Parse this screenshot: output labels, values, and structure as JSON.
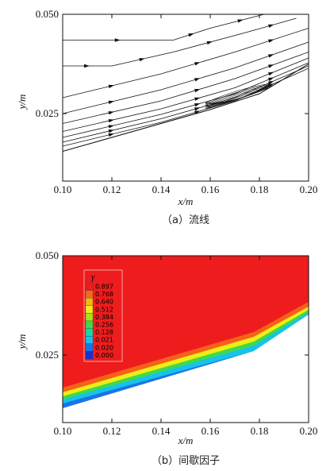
{
  "figure_a": {
    "caption": "（a）流线",
    "xlabel": "x/m",
    "ylabel": "y/m",
    "xticks": [
      "0.10",
      "0.12",
      "0.14",
      "0.16",
      "0.18",
      "0.20"
    ],
    "yticks": [
      "0.025",
      "0.050"
    ]
  },
  "figure_b": {
    "caption": "（b）间歇因子",
    "xlabel": "x/m",
    "ylabel": "y/m",
    "xticks": [
      "0.10",
      "0.12",
      "0.14",
      "0.16",
      "0.18",
      "0.20"
    ],
    "yticks": [
      "0.025",
      "0.050"
    ],
    "legend_title": "γ",
    "legend_levels": [
      "0.897",
      "0.768",
      "0.640",
      "0.512",
      "0.384",
      "0.256",
      "0.128",
      "0.021",
      "0.020",
      "0.000"
    ],
    "legend_colors": [
      "#ee1c1c",
      "#f46a1a",
      "#f7b716",
      "#f0ec16",
      "#a6e31c",
      "#3fd94c",
      "#1fd3a6",
      "#16c3e8",
      "#1a73e8",
      "#1a2fd0"
    ]
  },
  "chart_data": [
    {
      "type": "line",
      "title": "",
      "xlabel": "x/m",
      "ylabel": "y/m",
      "xlim": [
        0.1,
        0.2
      ],
      "ylim": [
        0.008,
        0.05
      ],
      "wall": {
        "x": [
          0.1,
          0.16,
          0.18,
          0.2
        ],
        "y": [
          0.0155,
          0.026,
          0.03,
          0.0375
        ]
      },
      "series": [
        {
          "x": [
            0.1,
            0.145,
            0.16,
            0.185
          ],
          "y": [
            0.0435,
            0.0435,
            0.0465,
            0.0505
          ]
        },
        {
          "x": [
            0.1,
            0.12,
            0.145,
            0.175,
            0.195
          ],
          "y": [
            0.037,
            0.037,
            0.0405,
            0.0455,
            0.049
          ]
        },
        {
          "x": [
            0.1,
            0.14,
            0.17,
            0.2
          ],
          "y": [
            0.029,
            0.035,
            0.0405,
            0.0465
          ]
        },
        {
          "x": [
            0.1,
            0.14,
            0.17,
            0.2
          ],
          "y": [
            0.025,
            0.031,
            0.0365,
            0.043
          ]
        },
        {
          "x": [
            0.1,
            0.14,
            0.17,
            0.2
          ],
          "y": [
            0.0225,
            0.0282,
            0.0338,
            0.0405
          ]
        },
        {
          "x": [
            0.1,
            0.14,
            0.17,
            0.2
          ],
          "y": [
            0.0205,
            0.0262,
            0.0315,
            0.039
          ]
        },
        {
          "x": [
            0.1,
            0.14,
            0.17,
            0.2
          ],
          "y": [
            0.019,
            0.0248,
            0.03,
            0.0378
          ]
        },
        {
          "x": [
            0.1,
            0.14,
            0.17,
            0.2
          ],
          "y": [
            0.0178,
            0.0237,
            0.029,
            0.037
          ]
        },
        {
          "x": [
            0.1,
            0.14,
            0.17,
            0.2
          ],
          "y": [
            0.0168,
            0.0228,
            0.0282,
            0.0364
          ]
        }
      ]
    },
    {
      "type": "heatmap",
      "title": "",
      "xlabel": "x/m",
      "ylabel": "y/m",
      "xlim": [
        0.1,
        0.2
      ],
      "ylim": [
        0.008,
        0.05
      ],
      "legend": "top-left"
    }
  ]
}
